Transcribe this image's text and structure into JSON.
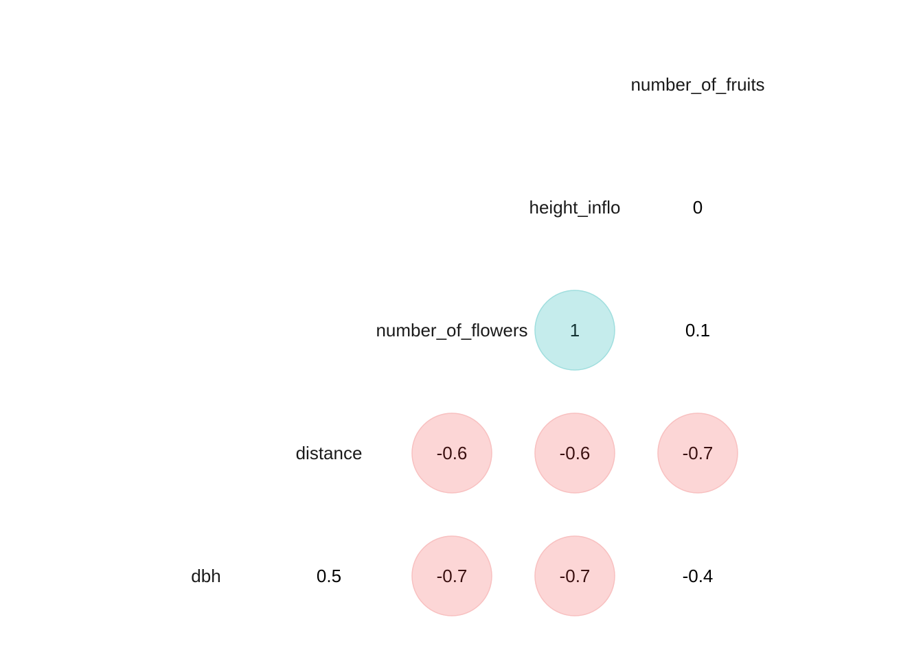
{
  "chart_data": {
    "type": "heatmap",
    "subtype": "correlation-matrix-lower-triangle",
    "variables": [
      "dbh",
      "distance",
      "number_of_flowers",
      "height_inflo",
      "number_of_fruits"
    ],
    "cells": [
      {
        "row": "height_inflo",
        "col": "number_of_fruits",
        "value": 0,
        "label": "0",
        "highlight": false
      },
      {
        "row": "number_of_flowers",
        "col": "height_inflo",
        "value": 1,
        "label": "1",
        "highlight": true
      },
      {
        "row": "number_of_flowers",
        "col": "number_of_fruits",
        "value": 0.1,
        "label": "0.1",
        "highlight": false
      },
      {
        "row": "distance",
        "col": "number_of_flowers",
        "value": -0.6,
        "label": "-0.6",
        "highlight": true
      },
      {
        "row": "distance",
        "col": "height_inflo",
        "value": -0.6,
        "label": "-0.6",
        "highlight": true
      },
      {
        "row": "distance",
        "col": "number_of_fruits",
        "value": -0.7,
        "label": "-0.7",
        "highlight": true
      },
      {
        "row": "dbh",
        "col": "distance",
        "value": 0.5,
        "label": "0.5",
        "highlight": false
      },
      {
        "row": "dbh",
        "col": "number_of_flowers",
        "value": -0.7,
        "label": "-0.7",
        "highlight": true
      },
      {
        "row": "dbh",
        "col": "height_inflo",
        "value": -0.7,
        "label": "-0.7",
        "highlight": true
      },
      {
        "row": "dbh",
        "col": "number_of_fruits",
        "value": -0.4,
        "label": "-0.4",
        "highlight": false
      }
    ],
    "colors": {
      "positive_fill": "#c5ecec",
      "positive_stroke": "#9fdede",
      "negative_fill": "#fcd6d6",
      "negative_stroke": "#f8c0c0"
    },
    "legend": "none",
    "grid": false
  }
}
